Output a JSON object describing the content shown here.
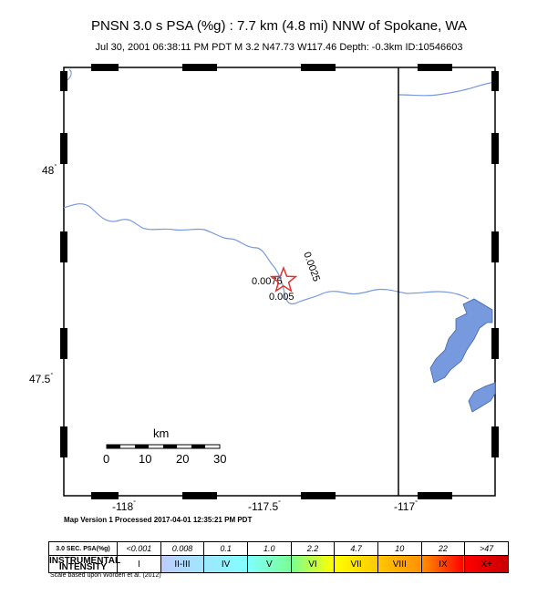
{
  "title": "PNSN 3.0 s PSA (%g) : 7.7 km (4.8 mi) NNW of Spokane, WA",
  "subtitle": "Jul 30, 2001 06:38:11 PM PDT    M 3.2    N47.73 W117.46    Depth: -0.3km    ID:10546603",
  "map": {
    "lat_labels": [
      "48",
      "47.5"
    ],
    "lon_labels": [
      "-118",
      "-117.5",
      "-117"
    ],
    "degree_mark": "°",
    "contours": [
      "0.0075",
      "0.005",
      "0.0025"
    ],
    "scale_bar": {
      "unit": "km",
      "ticks": [
        "0",
        "10",
        "20",
        "30"
      ]
    },
    "epicenter_marker": "star-icon",
    "colors": {
      "water": "#7799dd",
      "river": "#7799dd",
      "epicenter": "#e0302c"
    }
  },
  "processed": "Map Version 1 Processed 2017-04-01 12:35:21 PM PDT",
  "legend": {
    "row1_header": "3.0 SEC. PSA(%g)",
    "values": [
      "<0.001",
      "0.008",
      "0.1",
      "1.0",
      "2.2",
      "4.7",
      "10",
      "22",
      ">47"
    ],
    "row2_header": "INSTRUMENTAL INTENSITY",
    "intensities": [
      "I",
      "II-III",
      "IV",
      "V",
      "VI",
      "VII",
      "VIII",
      "IX",
      "X+"
    ],
    "colors": [
      "#ffffff",
      "#bfccff",
      "#a0e6ff",
      "#80ffff",
      "#7aff93",
      "#ffff00",
      "#ffc800",
      "#ff9100",
      "#ff0000",
      "#c80000"
    ]
  },
  "credit": "Scale based upon Worden et al. (2012)"
}
